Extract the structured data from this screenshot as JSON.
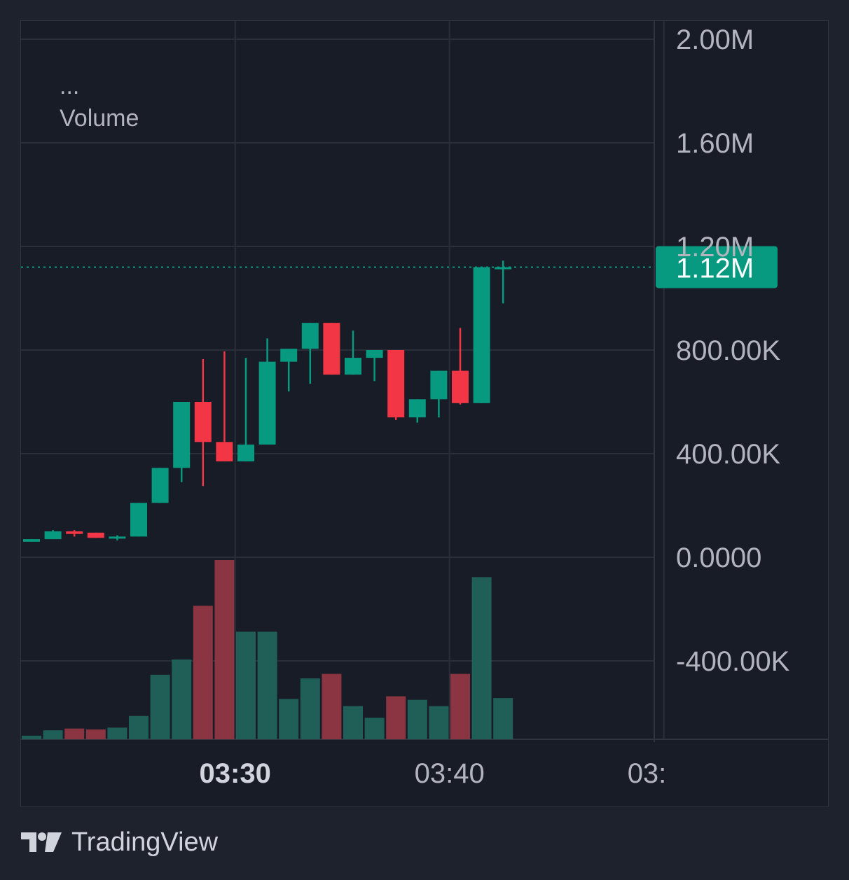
{
  "legend": {
    "ellipsis": "...",
    "indicator_label": "Volume"
  },
  "branding": {
    "name": "TradingView",
    "logo_icon": "tradingview-logo-icon"
  },
  "last_price_label": "1.12M",
  "colors": {
    "background": "#1e222d",
    "pane": "#181c27",
    "grid": "#2a2e39",
    "up": "#089981",
    "down": "#f23645",
    "volume_up": "#1f5f58",
    "volume_down": "#8a3541",
    "text": "#b2b5be"
  },
  "chart_data": {
    "type": "candlestick",
    "y_axis": {
      "tick_labels": [
        "2.00M",
        "1.60M",
        "1.20M",
        "800.00K",
        "400.00K",
        "0.0000",
        "-400.00K"
      ],
      "tick_values": [
        2000000,
        1600000,
        1200000,
        800000,
        400000,
        0,
        -400000
      ]
    },
    "x_axis": {
      "tick_labels": [
        "03:30",
        "03:40",
        "03:"
      ],
      "tick_positions": [
        9.5,
        19.5,
        29.5
      ],
      "bold_index": 0
    },
    "last_price": 1120000,
    "candles": [
      {
        "o": 60000,
        "h": 70000,
        "l": 60000,
        "c": 70000,
        "dir": "up"
      },
      {
        "o": 70000,
        "h": 105000,
        "l": 70000,
        "c": 100000,
        "dir": "up"
      },
      {
        "o": 100000,
        "h": 105000,
        "l": 80000,
        "c": 90000,
        "dir": "down"
      },
      {
        "o": 95000,
        "h": 95000,
        "l": 75000,
        "c": 75000,
        "dir": "down"
      },
      {
        "o": 75000,
        "h": 85000,
        "l": 65000,
        "c": 80000,
        "dir": "up"
      },
      {
        "o": 80000,
        "h": 210000,
        "l": 80000,
        "c": 210000,
        "dir": "up"
      },
      {
        "o": 210000,
        "h": 345000,
        "l": 210000,
        "c": 345000,
        "dir": "up"
      },
      {
        "o": 345000,
        "h": 600000,
        "l": 290000,
        "c": 600000,
        "dir": "up"
      },
      {
        "o": 600000,
        "h": 765000,
        "l": 275000,
        "c": 445000,
        "dir": "down"
      },
      {
        "o": 445000,
        "h": 795000,
        "l": 370000,
        "c": 370000,
        "dir": "down"
      },
      {
        "o": 370000,
        "h": 770000,
        "l": 370000,
        "c": 435000,
        "dir": "up"
      },
      {
        "o": 435000,
        "h": 845000,
        "l": 435000,
        "c": 755000,
        "dir": "up"
      },
      {
        "o": 755000,
        "h": 800000,
        "l": 640000,
        "c": 805000,
        "dir": "up"
      },
      {
        "o": 805000,
        "h": 905000,
        "l": 670000,
        "c": 905000,
        "dir": "up"
      },
      {
        "o": 905000,
        "h": 905000,
        "l": 705000,
        "c": 705000,
        "dir": "down"
      },
      {
        "o": 705000,
        "h": 875000,
        "l": 705000,
        "c": 770000,
        "dir": "up"
      },
      {
        "o": 770000,
        "h": 800000,
        "l": 680000,
        "c": 800000,
        "dir": "up"
      },
      {
        "o": 800000,
        "h": 800000,
        "l": 530000,
        "c": 540000,
        "dir": "down"
      },
      {
        "o": 540000,
        "h": 610000,
        "l": 520000,
        "c": 610000,
        "dir": "up"
      },
      {
        "o": 610000,
        "h": 720000,
        "l": 540000,
        "c": 720000,
        "dir": "up"
      },
      {
        "o": 720000,
        "h": 885000,
        "l": 590000,
        "c": 595000,
        "dir": "down"
      },
      {
        "o": 595000,
        "h": 1120000,
        "l": 595000,
        "c": 1120000,
        "dir": "up"
      },
      {
        "o": 1120000,
        "h": 1145000,
        "l": 980000,
        "c": 1120000,
        "dir": "up"
      }
    ],
    "volume": [
      {
        "v": 0.02,
        "dir": "up"
      },
      {
        "v": 0.05,
        "dir": "up"
      },
      {
        "v": 0.06,
        "dir": "down"
      },
      {
        "v": 0.055,
        "dir": "down"
      },
      {
        "v": 0.065,
        "dir": "up"
      },
      {
        "v": 0.13,
        "dir": "up"
      },
      {
        "v": 0.36,
        "dir": "up"
      },
      {
        "v": 0.445,
        "dir": "up"
      },
      {
        "v": 0.745,
        "dir": "down"
      },
      {
        "v": 1.0,
        "dir": "down"
      },
      {
        "v": 0.6,
        "dir": "up"
      },
      {
        "v": 0.6,
        "dir": "up"
      },
      {
        "v": 0.225,
        "dir": "up"
      },
      {
        "v": 0.34,
        "dir": "up"
      },
      {
        "v": 0.365,
        "dir": "down"
      },
      {
        "v": 0.185,
        "dir": "up"
      },
      {
        "v": 0.12,
        "dir": "up"
      },
      {
        "v": 0.24,
        "dir": "down"
      },
      {
        "v": 0.22,
        "dir": "up"
      },
      {
        "v": 0.185,
        "dir": "up"
      },
      {
        "v": 0.365,
        "dir": "down"
      },
      {
        "v": 0.905,
        "dir": "up"
      },
      {
        "v": 0.23,
        "dir": "up"
      }
    ]
  }
}
